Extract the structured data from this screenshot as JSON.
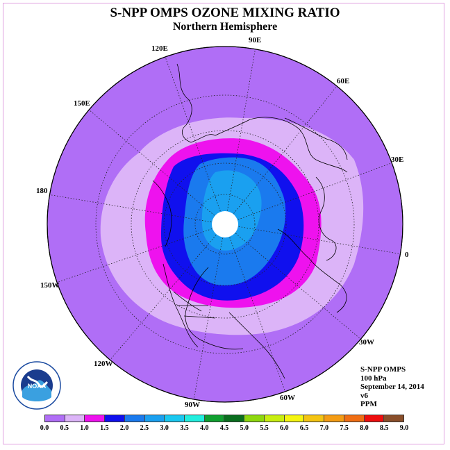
{
  "header": {
    "title": "S-NPP OMPS OZONE MIXING RATIO",
    "subtitle": "Northern Hemisphere"
  },
  "map": {
    "projection": "north-polar-stereographic",
    "longitude_labels": [
      "90E",
      "60E",
      "30E",
      "0",
      "30W",
      "60W",
      "90W",
      "120W",
      "150W",
      "180",
      "150E",
      "120E"
    ],
    "fill_levels_outer_to_inner_ppm": [
      "0.0-0.5",
      "0.5-1.0",
      "1.0-1.5",
      "1.5-2.0",
      "2.0-2.5",
      "2.5-3.0"
    ],
    "pole_no_data_color": "#ffffff"
  },
  "info": {
    "instrument": "S-NPP OMPS",
    "level": "100 hPa",
    "date": "September 14, 2014",
    "version": "v6",
    "units": "PPM"
  },
  "colorbar": {
    "colors": [
      "#b06ef6",
      "#dcb4f8",
      "#ee12ee",
      "#1010ee",
      "#1a7aee",
      "#1aa0f0",
      "#1ac8f0",
      "#22eede",
      "#10a030",
      "#0a6e1e",
      "#8ed80e",
      "#c8ee10",
      "#f5f510",
      "#f4c412",
      "#f49c14",
      "#f06e14",
      "#ee0e0e",
      "#8a4e2a"
    ],
    "tick_labels": [
      "0.0",
      "0.5",
      "1.0",
      "1.5",
      "2.0",
      "2.5",
      "3.0",
      "3.5",
      "4.0",
      "4.5",
      "5.0",
      "5.5",
      "6.0",
      "6.5",
      "7.0",
      "7.5",
      "8.0",
      "8.5",
      "9.0"
    ]
  },
  "logo": {
    "text": "NOAA",
    "ring_text": "NATIONAL OCEANIC AND ATMOSPHERIC ADMINISTRATION · U.S. DEPARTMENT OF COMMERCE"
  }
}
